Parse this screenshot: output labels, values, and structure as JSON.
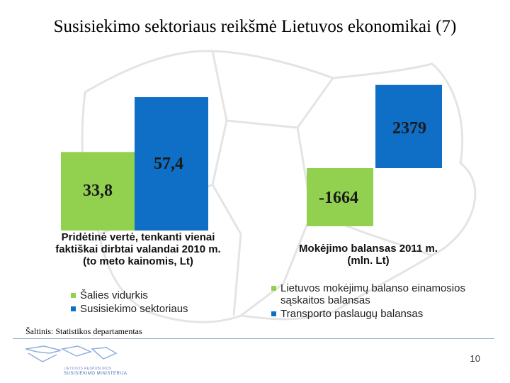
{
  "slide": {
    "title": "Susisiekimo sektoriaus reikšmė Lietuvos ekonomikai (7)",
    "source": "Šaltinis: Statistikos departamentas",
    "page_number": "10",
    "logo_line1": "LIETUVOS RESPUBLIKOS",
    "logo_line2": "SUSISIEKIMO MINISTERIJA"
  },
  "colors": {
    "green": "#92d050",
    "blue": "#0f6fc6"
  },
  "chart_data": [
    {
      "type": "bar",
      "title_lines": [
        "Pridėtinė vertė, tenkanti vienai",
        "faktiškai dirbtai valandai 2010 m.",
        "(to meto kainomis, Lt)"
      ],
      "series": [
        {
          "name": "Šalies vidurkis",
          "values": [
            33.8
          ],
          "label": "33,8"
        },
        {
          "name": "Susisiekimo sektoriaus",
          "values": [
            57.4
          ],
          "label": "57,4"
        }
      ],
      "ylim": [
        0,
        57.4
      ]
    },
    {
      "type": "bar",
      "title_lines": [
        "Mokėjimo balansas 2011 m.",
        "(mln. Lt)"
      ],
      "series": [
        {
          "name": "Lietuvos mokėjimų balanso einamosios sąskaitos balansas",
          "values": [
            -1664
          ],
          "label": "-1664"
        },
        {
          "name": "Transporto paslaugų balansas",
          "values": [
            2379
          ],
          "label": "2379"
        }
      ],
      "ylim": [
        -1664,
        2379
      ]
    }
  ]
}
